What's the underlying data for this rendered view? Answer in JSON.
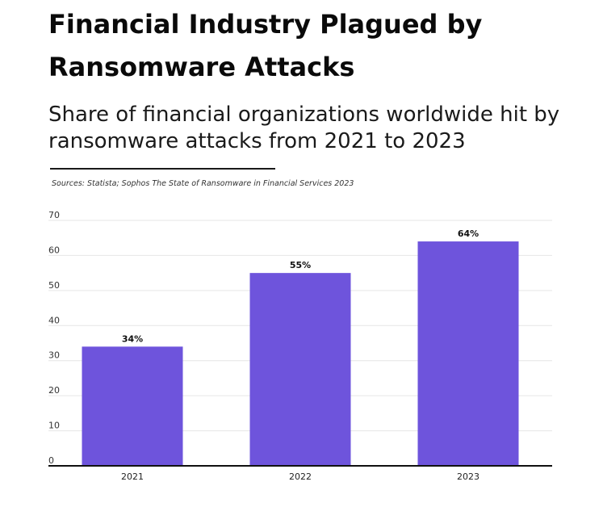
{
  "header": {
    "title": "Financial Industry Plagued by Ransomware Attacks",
    "subtitle": "Share of financial organizations worldwide hit by ransomware attacks from 2021 to 2023",
    "source": "Sources: Statista;  Sophos The State of Ransomware in Financial Services 2023"
  },
  "chart_data": {
    "type": "bar",
    "categories": [
      "2021",
      "2022",
      "2023"
    ],
    "values": [
      34,
      55,
      64
    ],
    "data_labels": [
      "34%",
      "55%",
      "64%"
    ],
    "ylim": [
      0,
      70
    ],
    "yticks": [
      0,
      10,
      20,
      30,
      40,
      50,
      60,
      70
    ],
    "grid": true,
    "legend": "none",
    "bar_color": "#6e54dc"
  }
}
